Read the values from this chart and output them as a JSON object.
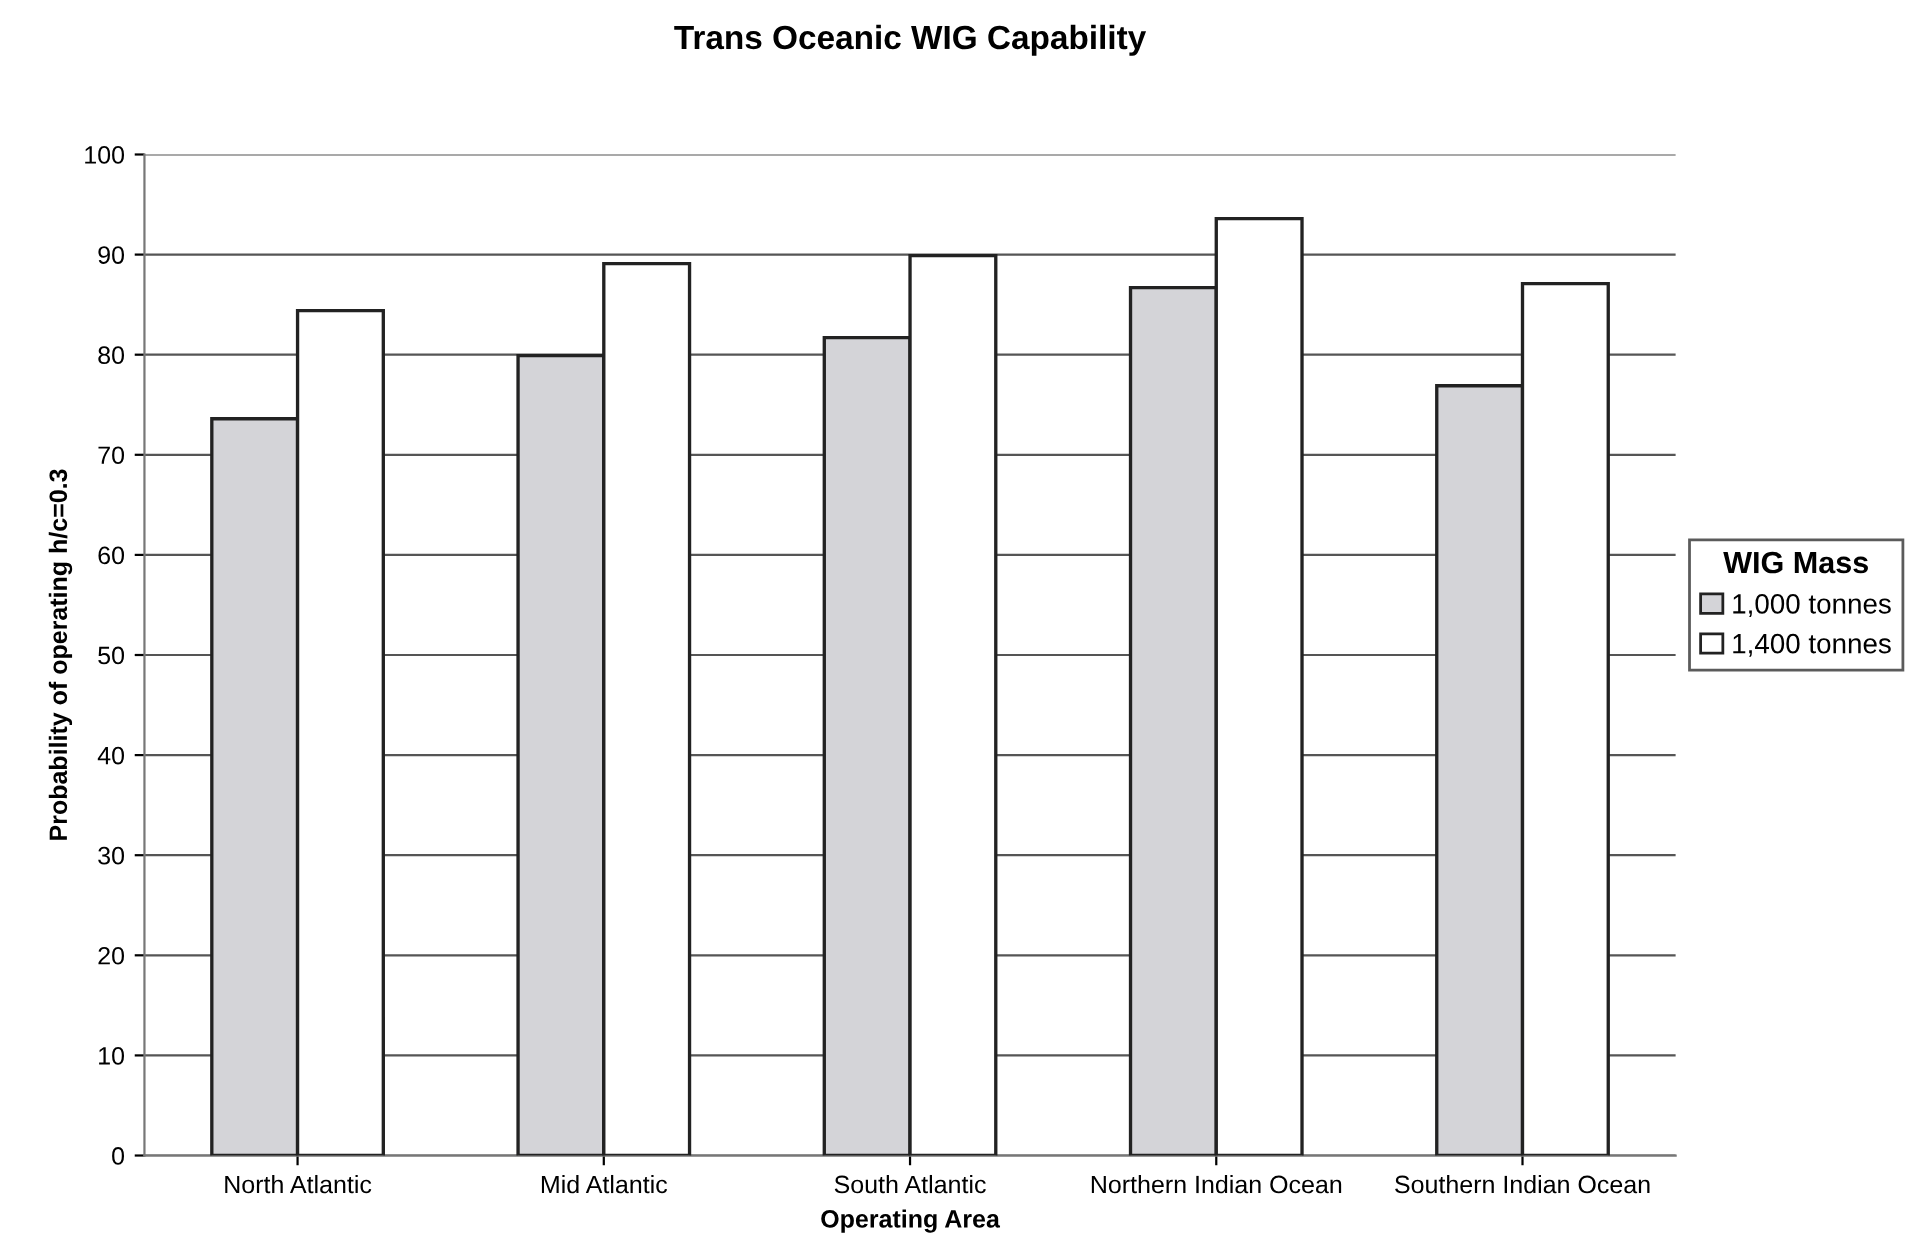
{
  "chart_data": {
    "type": "bar",
    "title": "Trans Oceanic WIG Capability",
    "xlabel": "Operating Area",
    "ylabel": "Probability of operating h/c=0.3",
    "legend_title": "WIG Mass",
    "categories": [
      "North Atlantic",
      "Mid Atlantic",
      "South Atlantic",
      "Northern Indian Ocean",
      "Southern Indian Ocean"
    ],
    "series": [
      {
        "name": "1,000 tonnes",
        "color": "#d4d4d8",
        "values": [
          73.6,
          79.9,
          81.7,
          86.7,
          76.9
        ]
      },
      {
        "name": "1,400 tonnes",
        "color": "#ffffff",
        "values": [
          84.4,
          89.1,
          89.9,
          93.6,
          87.1
        ]
      }
    ],
    "ylim": [
      0,
      100
    ],
    "yticks": [
      0,
      10,
      20,
      30,
      40,
      50,
      60,
      70,
      80,
      90,
      100
    ],
    "grid": "y",
    "legend": "right"
  }
}
